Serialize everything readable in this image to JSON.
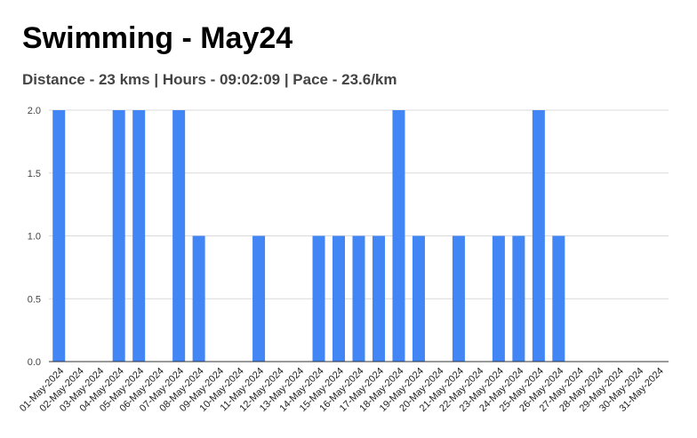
{
  "chart_data": {
    "type": "bar",
    "title": "Swimming - May24",
    "subtitle": "Distance - 23 kms | Hours - 09:02:09 | Pace - 23.6/km",
    "xlabel": "",
    "ylabel": "",
    "ylim": [
      0,
      2
    ],
    "yticks": [
      "0.0",
      "0.5",
      "1.0",
      "1.5",
      "2.0"
    ],
    "grid": true,
    "bar_color": "#4285f4",
    "categories": [
      "01-May-2024",
      "02-May-2024",
      "03-May-2024",
      "04-May-2024",
      "05-May-2024",
      "06-May-2024",
      "07-May-2024",
      "08-May-2024",
      "09-May-2024",
      "10-May-2024",
      "11-May-2024",
      "12-May-2024",
      "13-May-2024",
      "14-May-2024",
      "15-May-2024",
      "16-May-2024",
      "17-May-2024",
      "18-May-2024",
      "19-May-2024",
      "20-May-2024",
      "21-May-2024",
      "22-May-2024",
      "23-May-2024",
      "24-May-2024",
      "25-May-2024",
      "26-May-2024",
      "27-May-2024",
      "28-May-2024",
      "29-May-2024",
      "30-May-2024",
      "31-May-2024"
    ],
    "values": [
      2,
      0,
      0,
      2,
      2,
      0,
      2,
      1,
      0,
      0,
      1,
      0,
      0,
      1,
      1,
      1,
      1,
      2,
      1,
      0,
      1,
      0,
      1,
      1,
      2,
      1,
      0,
      0,
      0,
      0,
      0
    ]
  }
}
